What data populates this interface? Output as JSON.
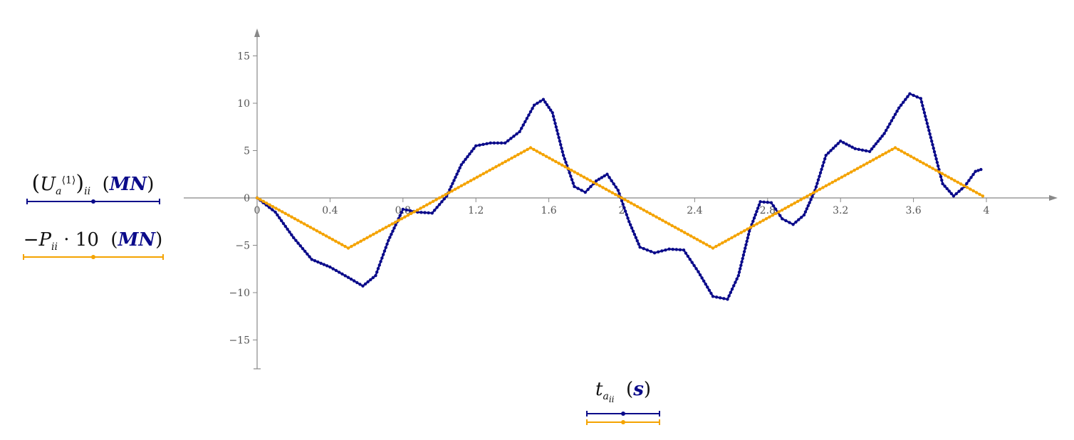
{
  "chart_data": {
    "type": "line",
    "x_axis": {
      "range": [
        0,
        4
      ],
      "ticks": [
        0,
        0.4,
        0.8,
        1.2,
        1.6,
        2,
        2.4,
        2.8,
        3.2,
        3.6,
        4
      ],
      "tick_labels": [
        "0",
        "0.4",
        "0.8",
        "1.2",
        "1.6",
        "2",
        "2.4",
        "2.8",
        "3.2",
        "3.6",
        "4"
      ],
      "label_var": "t",
      "label_sub": "a",
      "label_subsub": "ii",
      "label_unit": "s"
    },
    "y_axis": {
      "range": [
        -18,
        18
      ],
      "ticks": [
        -15,
        -10,
        -5,
        0,
        5,
        10,
        15
      ],
      "tick_labels": [
        "−15",
        "−10",
        "−5",
        "0",
        "5",
        "10",
        "15"
      ]
    },
    "grid": false,
    "series": [
      {
        "key": "U",
        "color": "#0b0b8a",
        "label_var": "U",
        "label_sub": "a",
        "label_sup": "⟨1⟩",
        "label_outer_sub": "ii",
        "label_unit": "MN",
        "x": [
          0,
          0.1,
          0.2,
          0.3,
          0.4,
          0.5,
          0.58,
          0.65,
          0.72,
          0.8,
          0.88,
          0.96,
          1.04,
          1.12,
          1.2,
          1.28,
          1.36,
          1.44,
          1.52,
          1.57,
          1.62,
          1.68,
          1.74,
          1.8,
          1.86,
          1.92,
          1.98,
          2.04,
          2.1,
          2.18,
          2.26,
          2.34,
          2.42,
          2.5,
          2.58,
          2.64,
          2.7,
          2.76,
          2.82,
          2.88,
          2.94,
          3.0,
          3.06,
          3.12,
          3.2,
          3.28,
          3.36,
          3.44,
          3.52,
          3.58,
          3.64,
          3.7,
          3.76,
          3.82,
          3.88,
          3.94,
          3.97
        ],
        "y": [
          0,
          -1.5,
          -4.2,
          -6.5,
          -7.3,
          -8.4,
          -9.3,
          -8.2,
          -4.5,
          -1.2,
          -1.5,
          -1.6,
          0.2,
          3.5,
          5.5,
          5.8,
          5.8,
          7.0,
          9.8,
          10.4,
          9.0,
          4.5,
          1.2,
          0.6,
          1.8,
          2.5,
          0.8,
          -2.5,
          -5.2,
          -5.8,
          -5.4,
          -5.5,
          -7.8,
          -10.4,
          -10.7,
          -8.2,
          -3.5,
          -0.4,
          -0.5,
          -2.2,
          -2.8,
          -1.8,
          0.8,
          4.5,
          6.0,
          5.2,
          4.9,
          6.8,
          9.5,
          11.0,
          10.5,
          6.0,
          1.5,
          0.2,
          1.2,
          2.8,
          3.0
        ]
      },
      {
        "key": "P",
        "color": "#f4a300",
        "label_sign": "−",
        "label_var": "P",
        "label_sub": "ii",
        "label_factor": "10",
        "label_unit": "MN",
        "x": [
          0,
          0.5,
          1.5,
          2.5,
          3.5,
          3.98
        ],
        "y": [
          0,
          -5.3,
          5.3,
          -5.3,
          5.3,
          0.2
        ]
      }
    ]
  }
}
